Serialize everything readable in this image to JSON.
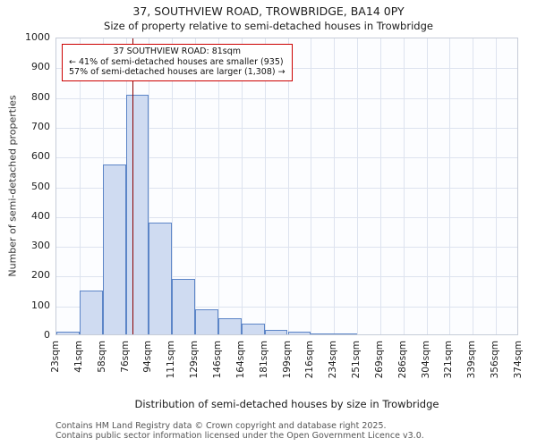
{
  "title": "37, SOUTHVIEW ROAD, TROWBRIDGE, BA14 0PY",
  "subtitle": "Size of property relative to semi-detached houses in Trowbridge",
  "chart_data": {
    "type": "bar",
    "title": "37, SOUTHVIEW ROAD, TROWBRIDGE, BA14 0PY",
    "subtitle": "Size of property relative to semi-detached houses in Trowbridge",
    "xlabel": "Distribution of semi-detached houses by size in Trowbridge",
    "ylabel": "Number of semi-detached properties",
    "ylim": [
      0,
      1000
    ],
    "ytick_step": 100,
    "grid": true,
    "legend": null,
    "bin_edges_sqm": [
      23,
      41,
      58,
      76,
      94,
      111,
      129,
      146,
      164,
      181,
      199,
      216,
      234,
      251,
      269,
      286,
      304,
      321,
      339,
      356,
      374
    ],
    "x_tick_labels": [
      "23sqm",
      "41sqm",
      "58sqm",
      "76sqm",
      "94sqm",
      "111sqm",
      "129sqm",
      "146sqm",
      "164sqm",
      "181sqm",
      "199sqm",
      "216sqm",
      "234sqm",
      "251sqm",
      "269sqm",
      "286sqm",
      "304sqm",
      "321sqm",
      "339sqm",
      "356sqm",
      "374sqm"
    ],
    "values": [
      10,
      148,
      570,
      805,
      375,
      185,
      85,
      55,
      35,
      15,
      8,
      4,
      2,
      0,
      0,
      0,
      0,
      0,
      0,
      0
    ],
    "bar_fill": "#cfdbf1",
    "bar_border": "#5c85c7",
    "marker": {
      "value_sqm": 81,
      "color": "#8b0000"
    },
    "annotation": {
      "border_color": "#cc0000",
      "line1": "37 SOUTHVIEW ROAD: 81sqm",
      "line2": "← 41% of semi-detached houses are smaller (935)",
      "line3": "57% of semi-detached houses are larger (1,308) →"
    }
  },
  "footer": {
    "line1": "Contains HM Land Registry data © Crown copyright and database right 2025.",
    "line2": "Contains public sector information licensed under the Open Government Licence v3.0."
  }
}
